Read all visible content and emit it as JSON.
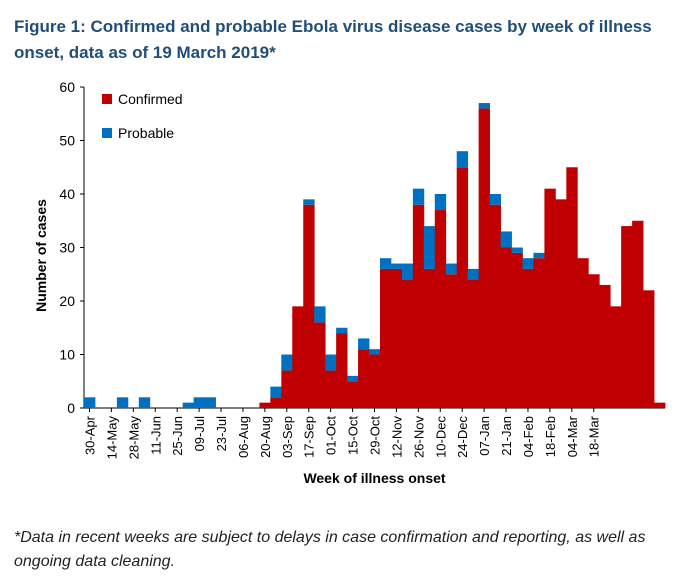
{
  "title": "Figure 1: Confirmed and probable Ebola virus disease cases by week of illness onset, data as of 19 March 2019*",
  "footnote": "*Data in recent weeks are subject to delays in case confirmation and reporting, as well as ongoing data cleaning.",
  "colors": {
    "confirmed": "#c00000",
    "probable": "#0070c0",
    "title": "#1f4e79"
  },
  "chart_data": {
    "type": "bar",
    "stacked": true,
    "xlabel": "Week of illness onset",
    "ylabel": "Number of cases",
    "ylim": [
      0,
      60
    ],
    "yticks": [
      0,
      10,
      20,
      30,
      40,
      50,
      60
    ],
    "legend": {
      "placement": "top-left"
    },
    "tick_labels": [
      "30-Apr",
      "14-May",
      "28-May",
      "11-Jun",
      "25-Jun",
      "09-Jul",
      "23-Jul",
      "06-Aug",
      "20-Aug",
      "03-Sep",
      "17-Sep",
      "01-Oct",
      "15-Oct",
      "29-Oct",
      "12-Nov",
      "26-Nov",
      "10-Dec",
      "24-Dec",
      "07-Jan",
      "21-Jan",
      "04-Feb",
      "18-Feb",
      "04-Mar",
      "18-Mar"
    ],
    "series": [
      {
        "name": "Confirmed",
        "color": "#c00000",
        "values": [
          0,
          0,
          0,
          0,
          0,
          0,
          0,
          0,
          0,
          0,
          0,
          0,
          0,
          0,
          0,
          0,
          1,
          2,
          7,
          19,
          38,
          16,
          7,
          14,
          5,
          11,
          10,
          26,
          26,
          24,
          38,
          26,
          37,
          25,
          45,
          24,
          56,
          38,
          30,
          29,
          26,
          28,
          41,
          39,
          45,
          28,
          25,
          23,
          19,
          34,
          35,
          22,
          1
        ]
      },
      {
        "name": "Probable",
        "color": "#0070c0",
        "values": [
          2,
          0,
          0,
          2,
          0,
          2,
          0,
          0,
          0,
          1,
          2,
          2,
          0,
          0,
          0,
          0,
          0,
          2,
          3,
          0,
          1,
          3,
          3,
          1,
          1,
          2,
          1,
          2,
          1,
          3,
          3,
          8,
          3,
          2,
          3,
          2,
          1,
          2,
          3,
          1,
          2,
          1,
          0,
          0,
          0,
          0,
          0,
          0,
          0,
          0,
          0,
          0,
          0
        ]
      }
    ]
  }
}
